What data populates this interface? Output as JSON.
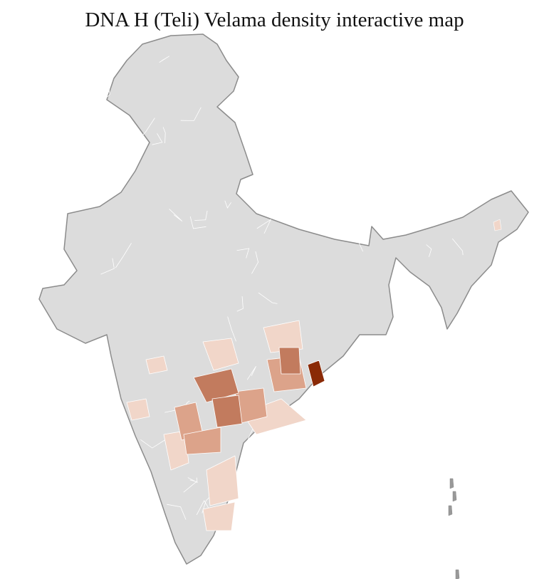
{
  "title": "DNA H (Teli) Velama density interactive map",
  "colors": {
    "no_data": "#dcdcdc",
    "district_border": "#ffffff",
    "state_border": "#8c8c8c",
    "density_low": "#f1d6c9",
    "density_medium": "#dca38a",
    "density_high": "#c27b5e",
    "density_max": "#8a2a06"
  },
  "regions": [
    {
      "level": "low"
    },
    {
      "level": "low"
    },
    {
      "level": "low"
    },
    {
      "level": "low"
    },
    {
      "level": "low"
    },
    {
      "level": "low"
    },
    {
      "level": "low"
    },
    {
      "level": "low"
    },
    {
      "level": "medium"
    },
    {
      "level": "medium"
    },
    {
      "level": "medium"
    },
    {
      "level": "medium"
    },
    {
      "level": "high"
    },
    {
      "level": "high"
    },
    {
      "level": "high"
    },
    {
      "level": "max"
    }
  ]
}
